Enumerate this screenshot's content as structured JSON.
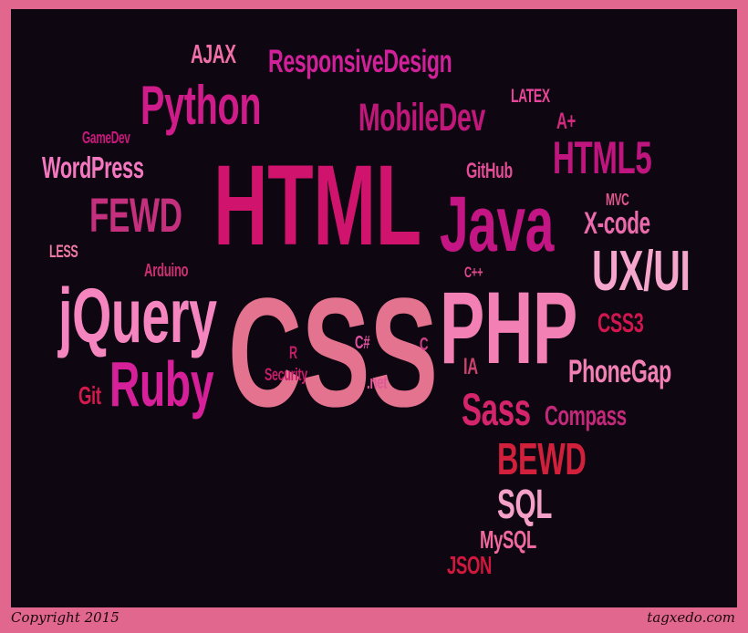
{
  "footer": {
    "copyright": "Copyright 2015",
    "site": "tagxedo.com"
  },
  "colors": {
    "background": "#0e0610",
    "border": "#e2678f"
  },
  "words": [
    {
      "id": "ajax",
      "text": "AJAX",
      "color": "#f06fa8"
    },
    {
      "id": "responsivedesign",
      "text": "ResponsiveDesign",
      "color": "#d0209a"
    },
    {
      "id": "python",
      "text": "Python",
      "color": "#d01c8b"
    },
    {
      "id": "mobiledev",
      "text": "MobileDev",
      "color": "#c0187a"
    },
    {
      "id": "latex",
      "text": "LATEX",
      "color": "#e8459a"
    },
    {
      "id": "gamedev",
      "text": "GameDev",
      "color": "#c8187c"
    },
    {
      "id": "aplus",
      "text": "A+",
      "color": "#d12a7e"
    },
    {
      "id": "wordpress",
      "text": "WordPress",
      "color": "#f478c0"
    },
    {
      "id": "html",
      "text": "HTML",
      "color": "#d0146e"
    },
    {
      "id": "github",
      "text": "GitHub",
      "color": "#e24c97"
    },
    {
      "id": "html5",
      "text": "HTML5",
      "color": "#c0157e"
    },
    {
      "id": "fewd",
      "text": "FEWD",
      "color": "#c4307e"
    },
    {
      "id": "java",
      "text": "Java",
      "color": "#c41584"
    },
    {
      "id": "mvc",
      "text": "MVC",
      "color": "#e0588f"
    },
    {
      "id": "xcode",
      "text": "X-code",
      "color": "#ea6aac"
    },
    {
      "id": "less",
      "text": "LESS",
      "color": "#f07aa4"
    },
    {
      "id": "arduino",
      "text": "Arduino",
      "color": "#cc2f72"
    },
    {
      "id": "uxui",
      "text": "UX/UI",
      "color": "#f5a6cc"
    },
    {
      "id": "cpp",
      "text": "C++",
      "color": "#e04a8e"
    },
    {
      "id": "jquery",
      "text": "jQuery",
      "color": "#f585bf"
    },
    {
      "id": "css",
      "text": "CSS",
      "color": "#e4738f"
    },
    {
      "id": "php",
      "text": "PHP",
      "color": "#f280b4"
    },
    {
      "id": "css3",
      "text": "CSS3",
      "color": "#d0164e"
    },
    {
      "id": "r",
      "text": "R",
      "color": "#c41e6a"
    },
    {
      "id": "csharp",
      "text": "C#",
      "color": "#e052a0"
    },
    {
      "id": "c",
      "text": "C",
      "color": "#d33e88"
    },
    {
      "id": "security",
      "text": "Security",
      "color": "#c41e6a"
    },
    {
      "id": "ruby",
      "text": "Ruby",
      "color": "#d6209a"
    },
    {
      "id": "ia",
      "text": "IA",
      "color": "#c8446c"
    },
    {
      "id": "phonegap",
      "text": "PhoneGap",
      "color": "#f280b4"
    },
    {
      "id": "git",
      "text": "Git",
      "color": "#d21a4c"
    },
    {
      "id": "dotnet",
      "text": ".net",
      "color": "#e0589a"
    },
    {
      "id": "sass",
      "text": "Sass",
      "color": "#d4246c"
    },
    {
      "id": "compass",
      "text": "Compass",
      "color": "#c4287a"
    },
    {
      "id": "bewd",
      "text": "BEWD",
      "color": "#d0203c"
    },
    {
      "id": "sql",
      "text": "SQL",
      "color": "#f4a0c8"
    },
    {
      "id": "mysql",
      "text": "MySQL",
      "color": "#f06a9e"
    },
    {
      "id": "json",
      "text": "JSON",
      "color": "#d0183e"
    }
  ]
}
